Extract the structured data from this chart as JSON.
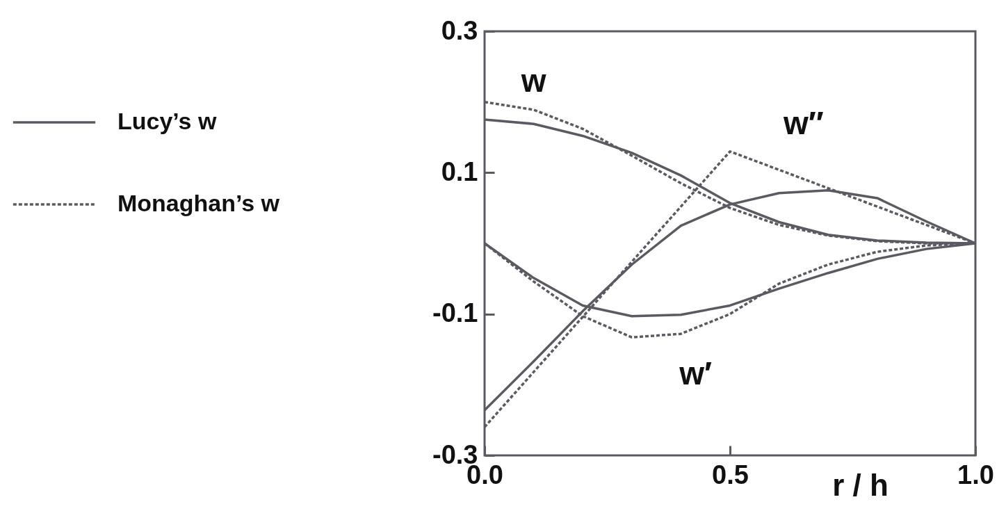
{
  "chart_data": {
    "type": "line",
    "xlabel": "r / h",
    "x": [
      0,
      0.1,
      0.2,
      0.3,
      0.4,
      0.5,
      0.6,
      0.7,
      0.8,
      0.9,
      1.0
    ],
    "series": [
      {
        "name": "Lucy’s w",
        "color": "#5a5a62",
        "line_style": "solid",
        "values": [
          0.175,
          0.169,
          0.152,
          0.128,
          0.096,
          0.057,
          0.03,
          0.012,
          0.004,
          0.001,
          0
        ]
      },
      {
        "color": "#5a5a62",
        "line_style": "solid",
        "values": [
          0,
          -0.049,
          -0.088,
          -0.103,
          -0.101,
          -0.088,
          -0.064,
          -0.042,
          -0.022,
          -0.008,
          0
        ]
      },
      {
        "color": "#5a5a62",
        "line_style": "solid",
        "values": [
          -0.236,
          -0.167,
          -0.096,
          -0.03,
          0.025,
          0.055,
          0.071,
          0.075,
          0.064,
          0.031,
          0
        ]
      },
      {
        "name": "Monaghan’s w",
        "color": "#5a5a62",
        "line_style": "dashed",
        "values": [
          0.2,
          0.189,
          0.162,
          0.124,
          0.085,
          0.05,
          0.026,
          0.011,
          0.003,
          0,
          0
        ]
      },
      {
        "color": "#5a5a62",
        "line_style": "dashed",
        "values": [
          0,
          -0.054,
          -0.103,
          -0.133,
          -0.128,
          -0.1,
          -0.057,
          -0.03,
          -0.012,
          -0.003,
          0
        ]
      },
      {
        "color": "#5a5a62",
        "line_style": "dashed",
        "x": [
          0,
          0.5,
          1.0
        ],
        "values": [
          -0.26,
          0.13,
          0
        ]
      }
    ],
    "xlim": [
      0,
      1
    ],
    "xticks": [
      {
        "value": 0,
        "label": "0.0"
      },
      0.5,
      {
        "value": 1,
        "label": "1.0"
      }
    ],
    "ylim": [
      -0.3,
      0.3
    ],
    "yticks": [
      -0.3,
      -0.1,
      0.1,
      0.3
    ],
    "annotations": [
      "w",
      "w″",
      "w′"
    ],
    "grid": false,
    "legend": "left",
    "marker": "none"
  }
}
